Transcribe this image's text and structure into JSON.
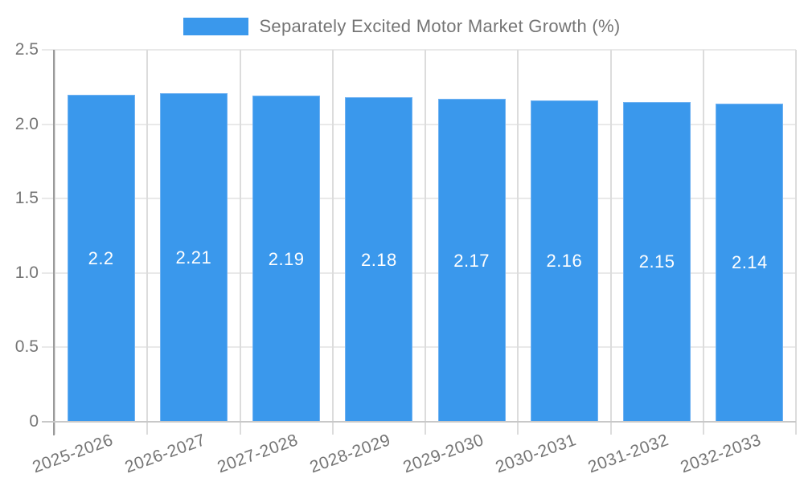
{
  "chart_data": {
    "type": "bar",
    "title": "",
    "legend": {
      "label": "Separately Excited Motor Market Growth (%)",
      "position": "top"
    },
    "categories": [
      "2025-2026",
      "2026-2027",
      "2027-2028",
      "2028-2029",
      "2029-2030",
      "2030-2031",
      "2031-2032",
      "2032-2033"
    ],
    "series": [
      {
        "name": "Separately Excited Motor Market Growth (%)",
        "values": [
          2.2,
          2.21,
          2.19,
          2.18,
          2.17,
          2.16,
          2.15,
          2.14
        ],
        "data_labels": [
          "2.2",
          "2.21",
          "2.19",
          "2.18",
          "2.17",
          "2.16",
          "2.15",
          "2.14"
        ],
        "color": "#3a98ec"
      }
    ],
    "xlabel": "",
    "ylabel": "",
    "ylim": [
      0,
      2.5
    ],
    "y_ticks": [
      {
        "value": 0,
        "label": "0"
      },
      {
        "value": 0.5,
        "label": "0.5"
      },
      {
        "value": 1,
        "label": "1.0"
      },
      {
        "value": 1.5,
        "label": "1.5"
      },
      {
        "value": 2,
        "label": "2.0"
      },
      {
        "value": 2.5,
        "label": "2.5"
      }
    ],
    "grid": true,
    "legend_position": "top",
    "colors": {
      "bar": "#3a98ec",
      "bar_border": "#70b2f2",
      "bar_label_text": "#ffffff",
      "grid_line": "#e9e9e9",
      "vertical_grid_line": "#dcdcdc",
      "zero_line": "#c8c8c8",
      "axis_line": "#9a9a9a",
      "tick_text": "#757575",
      "legend_text": "#757575",
      "background": "#ffffff"
    }
  }
}
